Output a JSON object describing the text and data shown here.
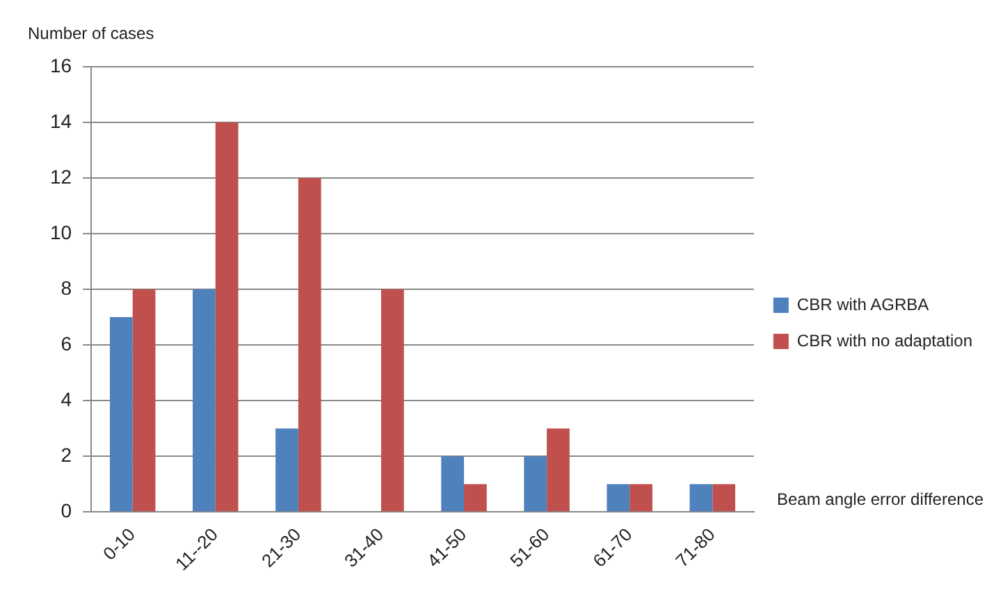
{
  "chart_data": {
    "type": "bar",
    "ylabel": "Number of cases",
    "xlabel": "Beam angle error difference",
    "categories": [
      "0-10",
      "11--20",
      "21-30",
      "31-40",
      "41-50",
      "51-60",
      "61-70",
      "71-80"
    ],
    "series": [
      {
        "name": "CBR with AGRBA",
        "color": "#4f81bd",
        "values": [
          7,
          8,
          3,
          0,
          2,
          2,
          1,
          1
        ]
      },
      {
        "name": "CBR with no adaptation",
        "color": "#c0504d",
        "values": [
          8,
          14,
          12,
          8,
          1,
          3,
          1,
          1
        ]
      }
    ],
    "ylim": [
      0,
      16
    ],
    "yticks": [
      0,
      2,
      4,
      6,
      8,
      10,
      12,
      14,
      16
    ],
    "grid": "y",
    "legend": "right"
  }
}
